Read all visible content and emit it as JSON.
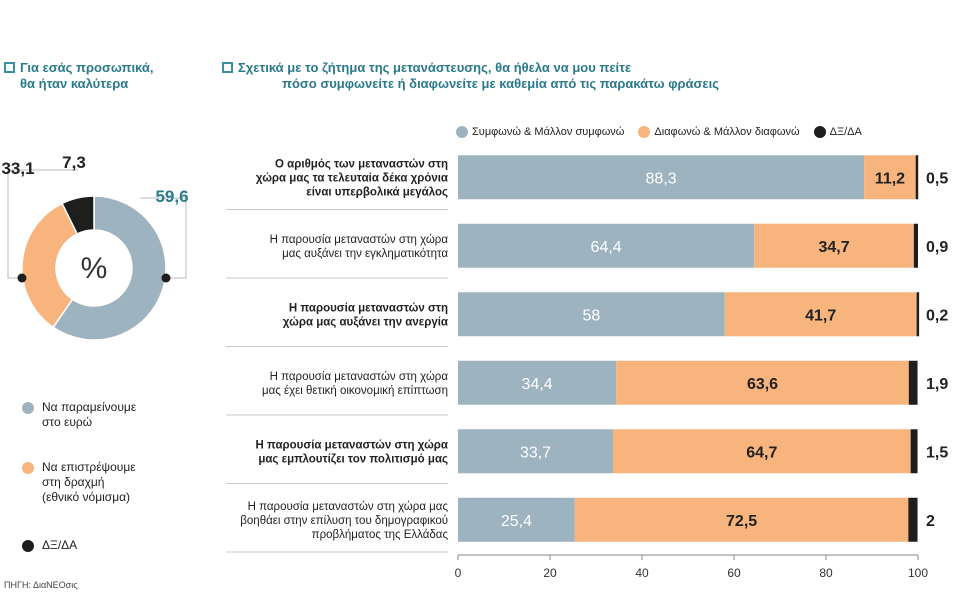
{
  "left_panel": {
    "title_line1": "Για εσάς προσωπικά,",
    "title_line2": "θα ήταν καλύτερα",
    "center_symbol": "%",
    "legend": [
      {
        "label_lines": [
          "Να παραμείνουμε",
          "στο ευρώ"
        ],
        "color": "#9db3bf"
      },
      {
        "label_lines": [
          "Να επιστρέψουμε",
          "στη δραχμή",
          "(εθνικό νόμισμα)"
        ],
        "color": "#f7b47c"
      },
      {
        "label_lines": [
          "ΔΞ/ΔΑ"
        ],
        "color": "#1e1e1e"
      }
    ]
  },
  "right_panel": {
    "title_line1": "Σχετικά με το ζήτημα της μετανάστευσης, θα ήθελα να μου πείτε",
    "title_line2": "πόσο συμφωνείτε ή διαφωνείτε με καθεμία από τις παρακάτω φράσεις",
    "legend": [
      {
        "label": "Συμφωνώ & Μάλλον συμφωνώ",
        "color": "#9db3bf"
      },
      {
        "label": "Διαφωνώ & Μάλλον διαφωνώ",
        "color": "#f7b47c"
      },
      {
        "label": "ΔΞ/ΔΑ",
        "color": "#1e1e1e"
      }
    ]
  },
  "source": "ΠΗΓΗ: ΔιαΝΕΟσις",
  "chart_data": [
    {
      "type": "pie",
      "style": "donut",
      "labels": [
        "Να παραμείνουμε στο ευρώ",
        "Να επιστρέψουμε στη δραχμή (εθνικό νόμισμα)",
        "ΔΞ/ΔΑ"
      ],
      "values": [
        59.6,
        33.1,
        7.3
      ],
      "value_labels": [
        "59,6",
        "33,1",
        "7,3"
      ],
      "colors": [
        "#9db3bf",
        "#f7b47c",
        "#1e1e1e"
      ],
      "center_label": "%"
    },
    {
      "type": "bar",
      "orientation": "horizontal",
      "stacked": true,
      "categories": [
        [
          "Ο αριθμός των μεταναστών στη",
          "χώρα μας τα τελευταία δέκα χρόνια",
          "είναι υπερβολικά μεγάλος"
        ],
        [
          "Η παρουσία μεταναστών στη χώρα",
          "μας αυξάνει την εγκληματικότητα"
        ],
        [
          "Η παρουσία μεταναστών στη",
          "χώρα μας αυξάνει την ανεργία"
        ],
        [
          "Η παρουσία μεταναστών στη χώρα",
          "μας έχει θετική οικονομική επίπτωση"
        ],
        [
          "Η παρουσία μεταναστών στη χώρα",
          "μας εμπλουτίζει τον πολιτισμό μας"
        ],
        [
          "Η παρουσία μεταναστών στη χώρα μας",
          "βοηθάει στην επίλυση του δημογραφικού",
          "προβλήματος της Ελλάδας"
        ]
      ],
      "bold_categories": [
        true,
        false,
        true,
        false,
        true,
        false
      ],
      "series": [
        {
          "name": "Συμφωνώ & Μάλλον συμφωνώ",
          "color": "#9db3bf",
          "values": [
            88.3,
            64.4,
            58,
            34.4,
            33.7,
            25.4
          ],
          "value_labels": [
            "88,3",
            "64,4",
            "58",
            "34,4",
            "33,7",
            "25,4"
          ]
        },
        {
          "name": "Διαφωνώ & Μάλλον διαφωνώ",
          "color": "#f7b47c",
          "values": [
            11.2,
            34.7,
            41.7,
            63.6,
            64.7,
            72.5
          ],
          "value_labels": [
            "11,2",
            "34,7",
            "41,7",
            "63,6",
            "64,7",
            "72,5"
          ]
        },
        {
          "name": "ΔΞ/ΔΑ",
          "color": "#1e1e1e",
          "values": [
            0.5,
            0.9,
            0.2,
            1.9,
            1.5,
            2
          ],
          "value_labels": [
            "0,5",
            "0,9",
            "0,2",
            "1,9",
            "1,5",
            "2"
          ]
        }
      ],
      "xlim": [
        0,
        100
      ],
      "xticks": [
        0,
        20,
        40,
        60,
        80,
        100
      ],
      "grid": false
    }
  ]
}
